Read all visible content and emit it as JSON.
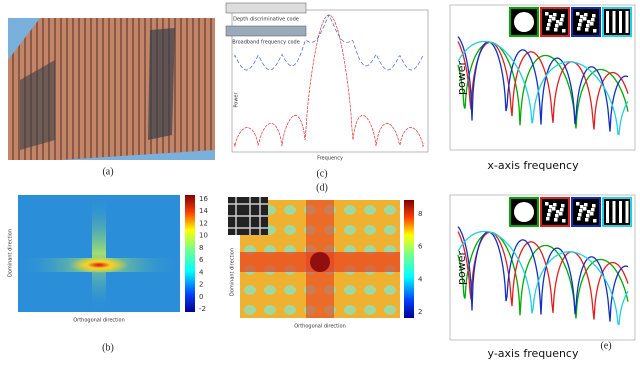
{
  "panel_a": {
    "label": "(a)"
  },
  "panel_b": {
    "label": "(b)",
    "y_axis": "Dominant direction",
    "x_axis": "Orthogonal direction",
    "colorbar": [
      16,
      14,
      12,
      10,
      8,
      6,
      4,
      2,
      0,
      -2
    ]
  },
  "panel_c": {
    "label": "(c)",
    "legend": [
      "Depth discriminative code",
      "Broadband frequency code"
    ],
    "y_axis": "Power",
    "x_axis": "Frequency"
  },
  "panel_d": {
    "label": "(d)",
    "y_axis": "Dominant direction",
    "x_axis": "Orthogonal direction",
    "colorbar": [
      8,
      6,
      4,
      2
    ]
  },
  "panel_e": {
    "label": "(e)",
    "top": {
      "y_axis": "power",
      "x_axis": "x-axis frequency"
    },
    "bottom": {
      "y_axis": "power",
      "x_axis": "y-axis frequency"
    }
  }
}
